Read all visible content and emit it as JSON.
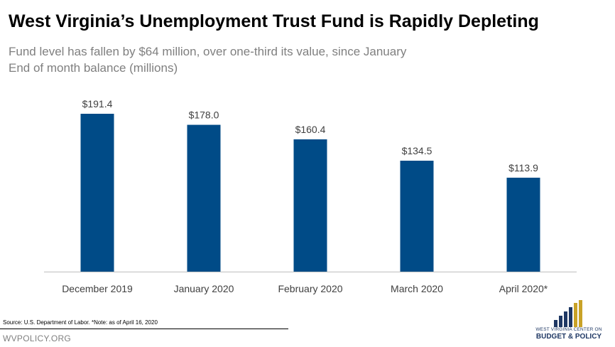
{
  "header": {
    "title": "West Virginia’s Unemployment Trust Fund is Rapidly Depleting",
    "subtitle1": "Fund level has fallen by $64 million, over one-third its value, since January",
    "subtitle2": "End of month balance (millions)"
  },
  "footer": {
    "source": "Source: U.S. Department of Labor. *Note: as of April 16, 2020",
    "site": "WVPOLICY.ORG"
  },
  "logo": {
    "line1": "WEST VIRGINIA CENTER ON",
    "line2": "BUDGET & POLICY",
    "colors": {
      "navy": "#1f3864",
      "gold": "#c9a227"
    }
  },
  "chart_data": {
    "type": "bar",
    "categories": [
      "December 2019",
      "January 2020",
      "February 2020",
      "March 2020",
      "April 2020*"
    ],
    "values": [
      191.4,
      178.0,
      160.4,
      134.5,
      113.9
    ],
    "data_labels": [
      "$191.4",
      "$178.0",
      "$160.4",
      "$134.5",
      "$113.9"
    ],
    "title": "West Virginia’s Unemployment Trust Fund is Rapidly Depleting",
    "xlabel": "",
    "ylabel": "",
    "ylim": [
      0,
      220
    ],
    "grid": false,
    "legend": "none",
    "bar_color": "#004b87",
    "axis_color": "#bfbfbf",
    "label_color": "#404040"
  }
}
